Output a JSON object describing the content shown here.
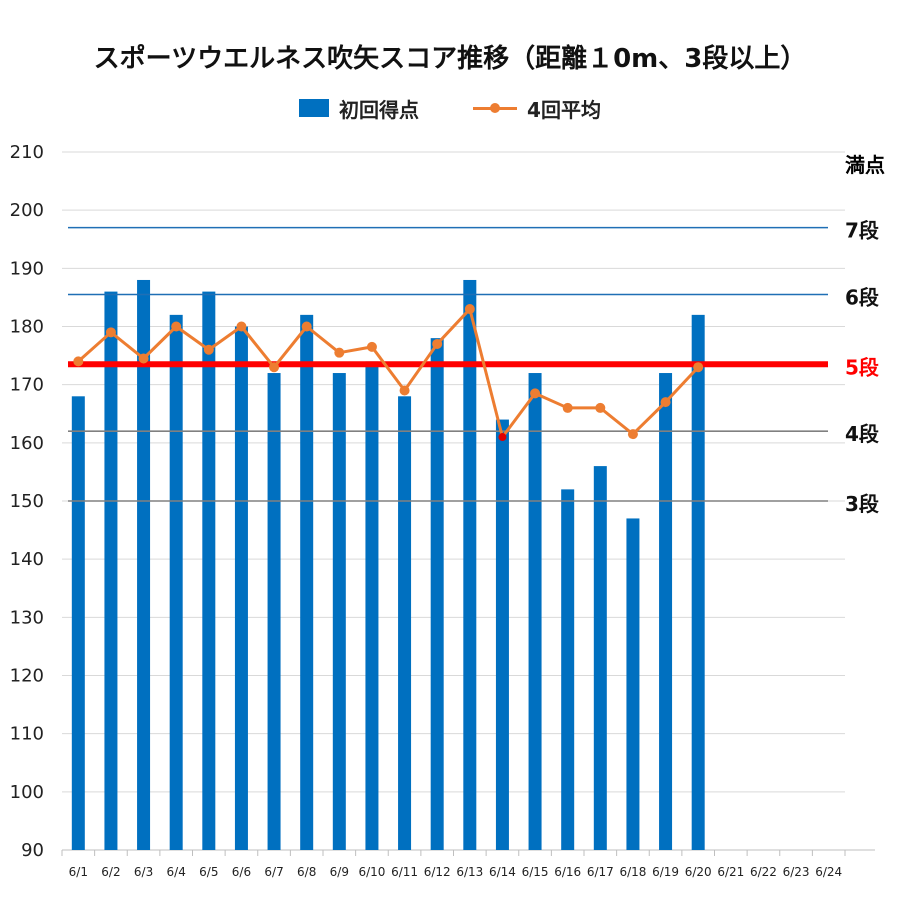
{
  "chart_data": {
    "type": "bar",
    "title": "スポーツウエルネス吹矢スコア推移（距離１0m、3段以上）",
    "ylim": [
      90,
      210
    ],
    "yticks": [
      90,
      100,
      110,
      120,
      130,
      140,
      150,
      160,
      170,
      180,
      190,
      200,
      210
    ],
    "categories": [
      "6/1",
      "6/2",
      "6/3",
      "6/4",
      "6/5",
      "6/6",
      "6/7",
      "6/8",
      "6/9",
      "6/10",
      "6/11",
      "6/12",
      "6/13",
      "6/14",
      "6/15",
      "6/16",
      "6/17",
      "6/18",
      "6/19",
      "6/20",
      "6/21",
      "6/22",
      "6/23",
      "6/24"
    ],
    "series": [
      {
        "name": "初回得点",
        "type": "bar",
        "color": "#0070c0",
        "values": [
          168,
          186,
          188,
          182,
          186,
          180,
          172,
          182,
          172,
          174,
          168,
          178,
          188,
          164,
          172,
          152,
          156,
          147,
          172,
          182,
          null,
          null,
          null,
          null
        ]
      },
      {
        "name": "4回平均",
        "type": "line",
        "color": "#ed7d31",
        "values": [
          174,
          179,
          174.5,
          180,
          176,
          180,
          173,
          180,
          175.5,
          176.5,
          169,
          177,
          183,
          161,
          168.5,
          166,
          166,
          161.5,
          167,
          173,
          null,
          null,
          null,
          null
        ],
        "highlight_point": {
          "category": "6/14",
          "color": "#e00000"
        }
      }
    ],
    "reference_lines": [
      {
        "label": "満点",
        "value": 210,
        "color": "#000000",
        "show_line": false
      },
      {
        "label": "7段",
        "value": 197,
        "color": "#1f6fb5",
        "label_color": "#111111",
        "show_line": true
      },
      {
        "label": "6段",
        "value": 185.5,
        "color": "#1f6fb5",
        "label_color": "#111111",
        "show_line": true
      },
      {
        "label": "5段",
        "value": 173.5,
        "color": "#ff0000",
        "label_color": "#ff0000",
        "show_line": true,
        "thick": true
      },
      {
        "label": "4段",
        "value": 162,
        "color": "#808080",
        "label_color": "#111111",
        "show_line": true
      },
      {
        "label": "3段",
        "value": 150,
        "color": "#808080",
        "label_color": "#111111",
        "show_line": true
      }
    ],
    "legend": "top-center",
    "grid": true
  }
}
